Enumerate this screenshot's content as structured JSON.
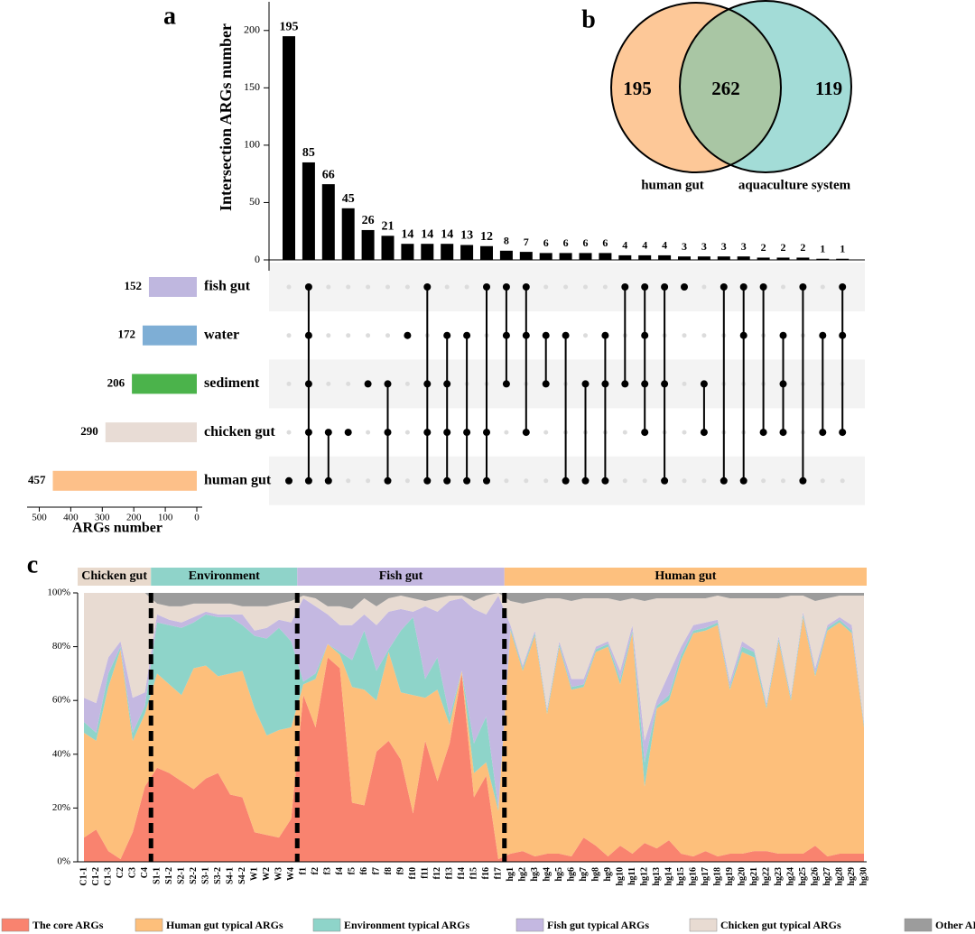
{
  "chart_data": [
    {
      "type": "upset",
      "label": "a",
      "ylabel": "Intersection ARGs number",
      "color": "#000000",
      "ylim": [
        0,
        225
      ],
      "yticks": [
        0,
        50,
        100,
        150,
        200
      ],
      "values": [
        195,
        85,
        66,
        45,
        26,
        21,
        14,
        14,
        14,
        13,
        12,
        8,
        7,
        6,
        6,
        6,
        6,
        4,
        4,
        4,
        3,
        3,
        3,
        3,
        2,
        2,
        2,
        1,
        1
      ],
      "members": [
        [
          4
        ],
        [
          0,
          1,
          2,
          3,
          4
        ],
        [
          3,
          4
        ],
        [
          3
        ],
        [
          2
        ],
        [
          2,
          3,
          4
        ],
        [
          1
        ],
        [
          0,
          2,
          3,
          4
        ],
        [
          1,
          2,
          3,
          4
        ],
        [
          1,
          3,
          4
        ],
        [
          0,
          3,
          4
        ],
        [
          0,
          1,
          2
        ],
        [
          0,
          1,
          3
        ],
        [
          1,
          2
        ],
        [
          1,
          4
        ],
        [
          2,
          4
        ],
        [
          1,
          2,
          4
        ],
        [
          0,
          2
        ],
        [
          0,
          1,
          2,
          3
        ],
        [
          0,
          2,
          4
        ],
        [
          0
        ],
        [
          2,
          3
        ],
        [
          0,
          4
        ],
        [
          0,
          1,
          4
        ],
        [
          0,
          3
        ],
        [
          1,
          2,
          3
        ],
        [
          0,
          4
        ],
        [
          1,
          3
        ],
        [
          0,
          1,
          3
        ]
      ],
      "sets": [
        {
          "name": "fish gut",
          "size": 152,
          "color": "#bfb7df"
        },
        {
          "name": "water",
          "size": 172,
          "color": "#7eaed5"
        },
        {
          "name": "sediment",
          "size": 206,
          "color": "#4bb34b"
        },
        {
          "name": "chicken gut",
          "size": 290,
          "color": "#e8dcd5"
        },
        {
          "name": "human gut",
          "size": 457,
          "color": "#fdc089"
        }
      ],
      "set_xlabel": "ARGs number",
      "set_xlim": [
        510,
        0
      ],
      "set_xticks": [
        500,
        400,
        300,
        200,
        100,
        0
      ]
    },
    {
      "type": "venn",
      "label": "b",
      "values": [
        195,
        262,
        119
      ],
      "overlap_color": "#a9c6a4",
      "sets": [
        {
          "name": "human gut",
          "color": "#fdc898"
        },
        {
          "name": "aquaculture system",
          "color": "#a3dcd7"
        }
      ]
    },
    {
      "type": "stacked_area",
      "label": "c",
      "ylim": [
        0,
        100
      ],
      "yticks": [
        {
          "value": 0,
          "label": "0%"
        },
        {
          "value": 20,
          "label": "20%"
        },
        {
          "value": 40,
          "label": "40%"
        },
        {
          "value": 60,
          "label": "60%"
        },
        {
          "value": 80,
          "label": "80%"
        },
        {
          "value": 100,
          "label": "100%"
        }
      ],
      "groups": [
        {
          "name": "Chicken gut",
          "color": "#e8d9cc",
          "categories": [
            "C1-1",
            "C1-2",
            "C1-3",
            "C2",
            "C3",
            "C4"
          ]
        },
        {
          "name": "Environment",
          "color": "#8fd3c9",
          "categories": [
            "S1-1",
            "S1-2",
            "S2-1",
            "S2-2",
            "S3-1",
            "S3-2",
            "S4-1",
            "S4-2",
            "W1",
            "W2",
            "W3",
            "W4"
          ]
        },
        {
          "name": "Fish gut",
          "color": "#c3b7e0",
          "categories": [
            "f1",
            "f2",
            "f3",
            "f4",
            "f5",
            "f6",
            "f7",
            "f8",
            "f9",
            "f10",
            "f11",
            "f12",
            "f13",
            "f14",
            "f15",
            "f16",
            "f17"
          ]
        },
        {
          "name": "Human gut",
          "color": "#fdc07e",
          "categories": [
            "hg1",
            "hg2",
            "hg3",
            "hg4",
            "hg5",
            "hg6",
            "hg7",
            "hg8",
            "hg9",
            "hg10",
            "hg11",
            "hg12",
            "hg13",
            "hg14",
            "hg15",
            "hg16",
            "hg17",
            "hg18",
            "hg19",
            "hg20",
            "hg21",
            "hg22",
            "hg23",
            "hg24",
            "hg25",
            "hg26",
            "hg27",
            "hg28",
            "hg29",
            "hg30"
          ]
        }
      ],
      "series": [
        {
          "name": "The core ARGs",
          "color": "#f9836f",
          "values": [
            9,
            12,
            4,
            1,
            11,
            28,
            35,
            33,
            30,
            27,
            31,
            33,
            25,
            24,
            11,
            10,
            9,
            16,
            62,
            50,
            76,
            72,
            22,
            21,
            41,
            45,
            38,
            18,
            45,
            30,
            44,
            70,
            24,
            32,
            1,
            3,
            4,
            2,
            3,
            3,
            2,
            9,
            6,
            2,
            6,
            3,
            7,
            5,
            8,
            3,
            2,
            4,
            2,
            3,
            3,
            4,
            4,
            3,
            3,
            3,
            6,
            2,
            3,
            3,
            3
          ]
        },
        {
          "name": "Human gut typical ARGs",
          "color": "#fdbf7b",
          "values": [
            39,
            33,
            61,
            78,
            34,
            27,
            35,
            33,
            32,
            45,
            42,
            36,
            45,
            47,
            46,
            37,
            40,
            34,
            4,
            18,
            5,
            5,
            43,
            43,
            19,
            33,
            25,
            44,
            16,
            34,
            7,
            1,
            9,
            5,
            18,
            83,
            67,
            82,
            52,
            77,
            62,
            56,
            72,
            78,
            60,
            82,
            21,
            52,
            52,
            72,
            83,
            82,
            86,
            61,
            75,
            72,
            53,
            79,
            57,
            88,
            63,
            84,
            86,
            82,
            47
          ]
        },
        {
          "name": "Environment typical ARGs",
          "color": "#8ed4c9",
          "values": [
            4,
            3,
            5,
            1,
            3,
            3,
            19,
            22,
            25,
            17,
            19,
            22,
            21,
            17,
            27,
            36,
            38,
            32,
            1,
            2,
            0,
            1,
            10,
            22,
            11,
            1,
            23,
            29,
            7,
            12,
            3,
            0,
            11,
            17,
            1,
            1,
            1,
            1,
            1,
            1,
            1,
            1,
            1,
            1,
            2,
            1,
            9,
            1,
            2,
            2,
            1,
            1,
            1,
            1,
            2,
            2,
            1,
            1,
            1,
            1,
            1,
            1,
            1,
            1,
            1
          ]
        },
        {
          "name": "Fish gut typical ARGs",
          "color": "#c4b8e1",
          "values": [
            9,
            11,
            6,
            2,
            13,
            5,
            3,
            2,
            2,
            2,
            1,
            1,
            1,
            4,
            2,
            4,
            3,
            7,
            31,
            25,
            11,
            10,
            13,
            6,
            17,
            14,
            8,
            2,
            27,
            17,
            43,
            27,
            50,
            38,
            79,
            1,
            1,
            1,
            1,
            1,
            3,
            2,
            1,
            1,
            3,
            2,
            8,
            2,
            8,
            3,
            2,
            2,
            1,
            2,
            2,
            1,
            1,
            1,
            1,
            1,
            2,
            1,
            1,
            2,
            1
          ]
        },
        {
          "name": "Chicken gut typical ARGs",
          "color": "#e8dbd2",
          "values": [
            39,
            41,
            24,
            18,
            39,
            37,
            4,
            5,
            6,
            5,
            3,
            4,
            4,
            3,
            9,
            8,
            6,
            8,
            1,
            3,
            3,
            7,
            6,
            6,
            7,
            5,
            5,
            5,
            2,
            5,
            2,
            1,
            3,
            7,
            1,
            9,
            23,
            11,
            41,
            16,
            29,
            30,
            18,
            16,
            26,
            10,
            52,
            38,
            28,
            18,
            10,
            9,
            9,
            31,
            16,
            19,
            39,
            14,
            37,
            6,
            25,
            10,
            8,
            11,
            47
          ]
        },
        {
          "name": "Other ARGs",
          "color": "#9c9c9c",
          "values": [
            0,
            0,
            0,
            0,
            0,
            0,
            4,
            5,
            5,
            4,
            4,
            4,
            4,
            5,
            5,
            5,
            4,
            3,
            1,
            2,
            5,
            5,
            6,
            2,
            5,
            2,
            1,
            2,
            3,
            2,
            1,
            1,
            3,
            1,
            0,
            3,
            4,
            3,
            2,
            2,
            3,
            2,
            2,
            2,
            3,
            2,
            3,
            2,
            2,
            2,
            2,
            2,
            1,
            2,
            2,
            2,
            2,
            2,
            1,
            1,
            3,
            2,
            1,
            1,
            1
          ]
        }
      ]
    }
  ]
}
